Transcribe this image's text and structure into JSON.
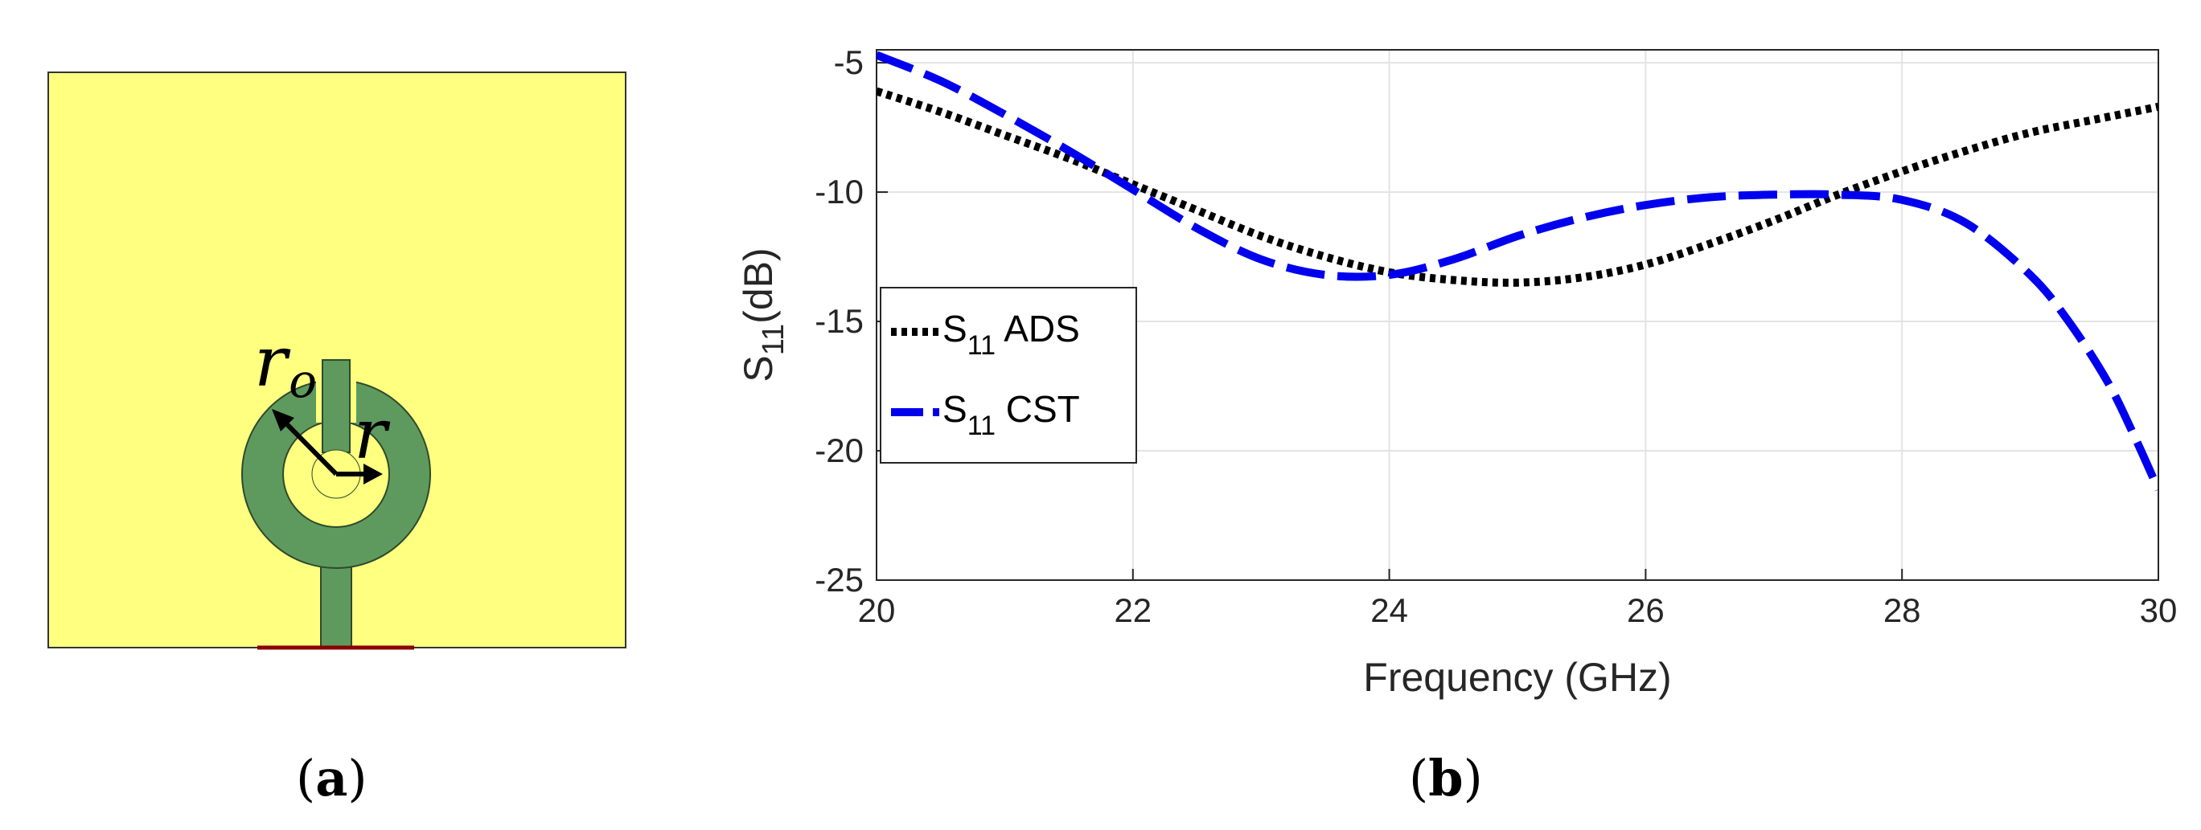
{
  "panel_a": {
    "caption_open": "(",
    "caption_letter": "a",
    "caption_close": ")",
    "outer_radius_label": "r",
    "outer_radius_sub": "o",
    "inner_radius_label": "r",
    "colors": {
      "substrate": "#FFFF7F",
      "patch": "#5E9A5E",
      "feed_edge": "#8B0000"
    }
  },
  "panel_b": {
    "caption_open": "(",
    "caption_letter": "b",
    "caption_close": ")"
  },
  "chart_data": {
    "type": "line",
    "title": "",
    "xlabel": "Frequency (GHz)",
    "ylabel_main": "S",
    "ylabel_sub": "11",
    "ylabel_unit": "(dB)",
    "xlim": [
      20,
      30
    ],
    "ylim": [
      -25,
      -4.5
    ],
    "xticks": [
      20,
      22,
      24,
      26,
      28,
      30
    ],
    "yticks": [
      -5,
      -10,
      -15,
      -20,
      -25
    ],
    "xtick_labels": [
      "20",
      "22",
      "24",
      "26",
      "28",
      "30"
    ],
    "ytick_labels": [
      "-5",
      "-10",
      "-15",
      "-20",
      "-25"
    ],
    "grid": true,
    "legend_position": "left-middle",
    "series": [
      {
        "name": "S11 ADS",
        "legend_main": "S",
        "legend_sub": "11",
        "legend_rest": " ADS",
        "style": "dotted",
        "color": "#000000",
        "x": [
          20,
          20.5,
          21,
          21.5,
          22,
          22.5,
          23,
          23.5,
          24,
          24.5,
          25,
          25.5,
          26,
          26.5,
          27,
          27.5,
          28,
          28.5,
          29,
          29.5,
          30
        ],
        "y": [
          -6.1,
          -6.9,
          -7.8,
          -8.7,
          -9.7,
          -10.7,
          -11.7,
          -12.5,
          -13.1,
          -13.4,
          -13.5,
          -13.3,
          -12.8,
          -12.0,
          -11.1,
          -10.1,
          -9.2,
          -8.4,
          -7.7,
          -7.2,
          -6.7
        ]
      },
      {
        "name": "S11 CST",
        "legend_main": "S",
        "legend_sub": "11",
        "legend_rest": " CST",
        "style": "dashed",
        "color": "#0000EE",
        "x": [
          20,
          20.5,
          21,
          21.5,
          22,
          22.5,
          23,
          23.5,
          24,
          24.5,
          25,
          25.5,
          26,
          26.5,
          27,
          27.5,
          28,
          28.5,
          29,
          29.3,
          29.6,
          29.8,
          30
        ],
        "y": [
          -4.7,
          -5.7,
          -7.0,
          -8.4,
          -9.9,
          -11.4,
          -12.6,
          -13.2,
          -13.2,
          -12.6,
          -11.7,
          -11.0,
          -10.5,
          -10.2,
          -10.1,
          -10.1,
          -10.3,
          -11.2,
          -13.2,
          -15.0,
          -17.3,
          -19.3,
          -21.5
        ]
      }
    ]
  }
}
